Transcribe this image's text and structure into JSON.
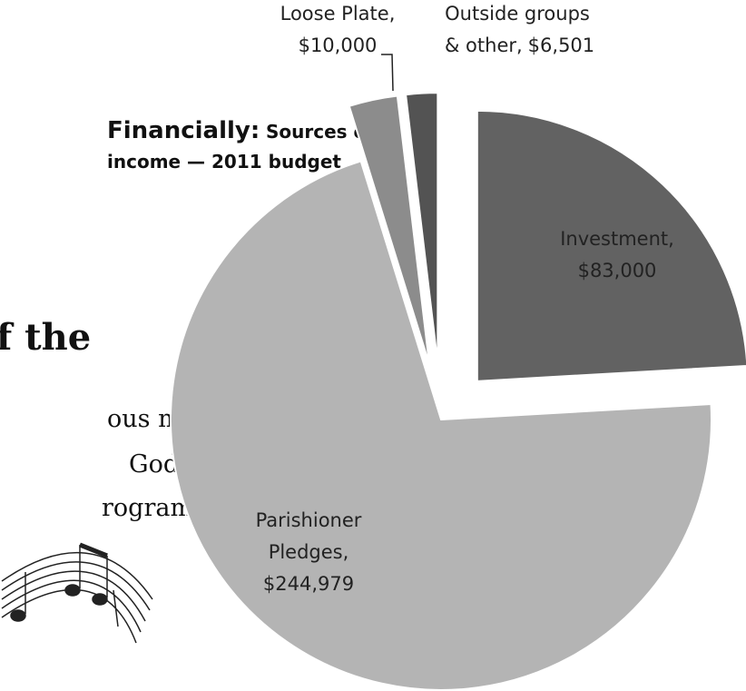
{
  "chart_data": {
    "type": "pie",
    "title": "Financially:",
    "subtitle": "Sources of income — 2011 budget",
    "categories": [
      "Investment,",
      "Parishioner Pledges,",
      "Loose Plate,",
      "Outside groups & other,"
    ],
    "values": [
      83000,
      244979,
      10000,
      6501
    ],
    "value_labels": [
      "$83,000",
      "$244,979",
      "$10,000",
      "$6,501"
    ],
    "colors": [
      "#626262",
      "#b4b4b4",
      "#8c8c8c",
      "#535353"
    ]
  },
  "background_text": {
    "heading": "f the",
    "lines": [
      "ous music",
      "God",
      "rogram"
    ]
  }
}
